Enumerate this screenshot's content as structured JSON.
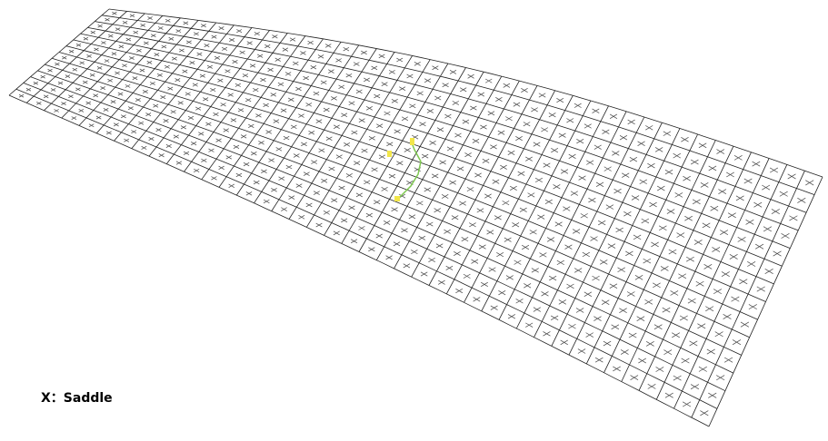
{
  "legend": {
    "text": "X：Saddle"
  }
}
